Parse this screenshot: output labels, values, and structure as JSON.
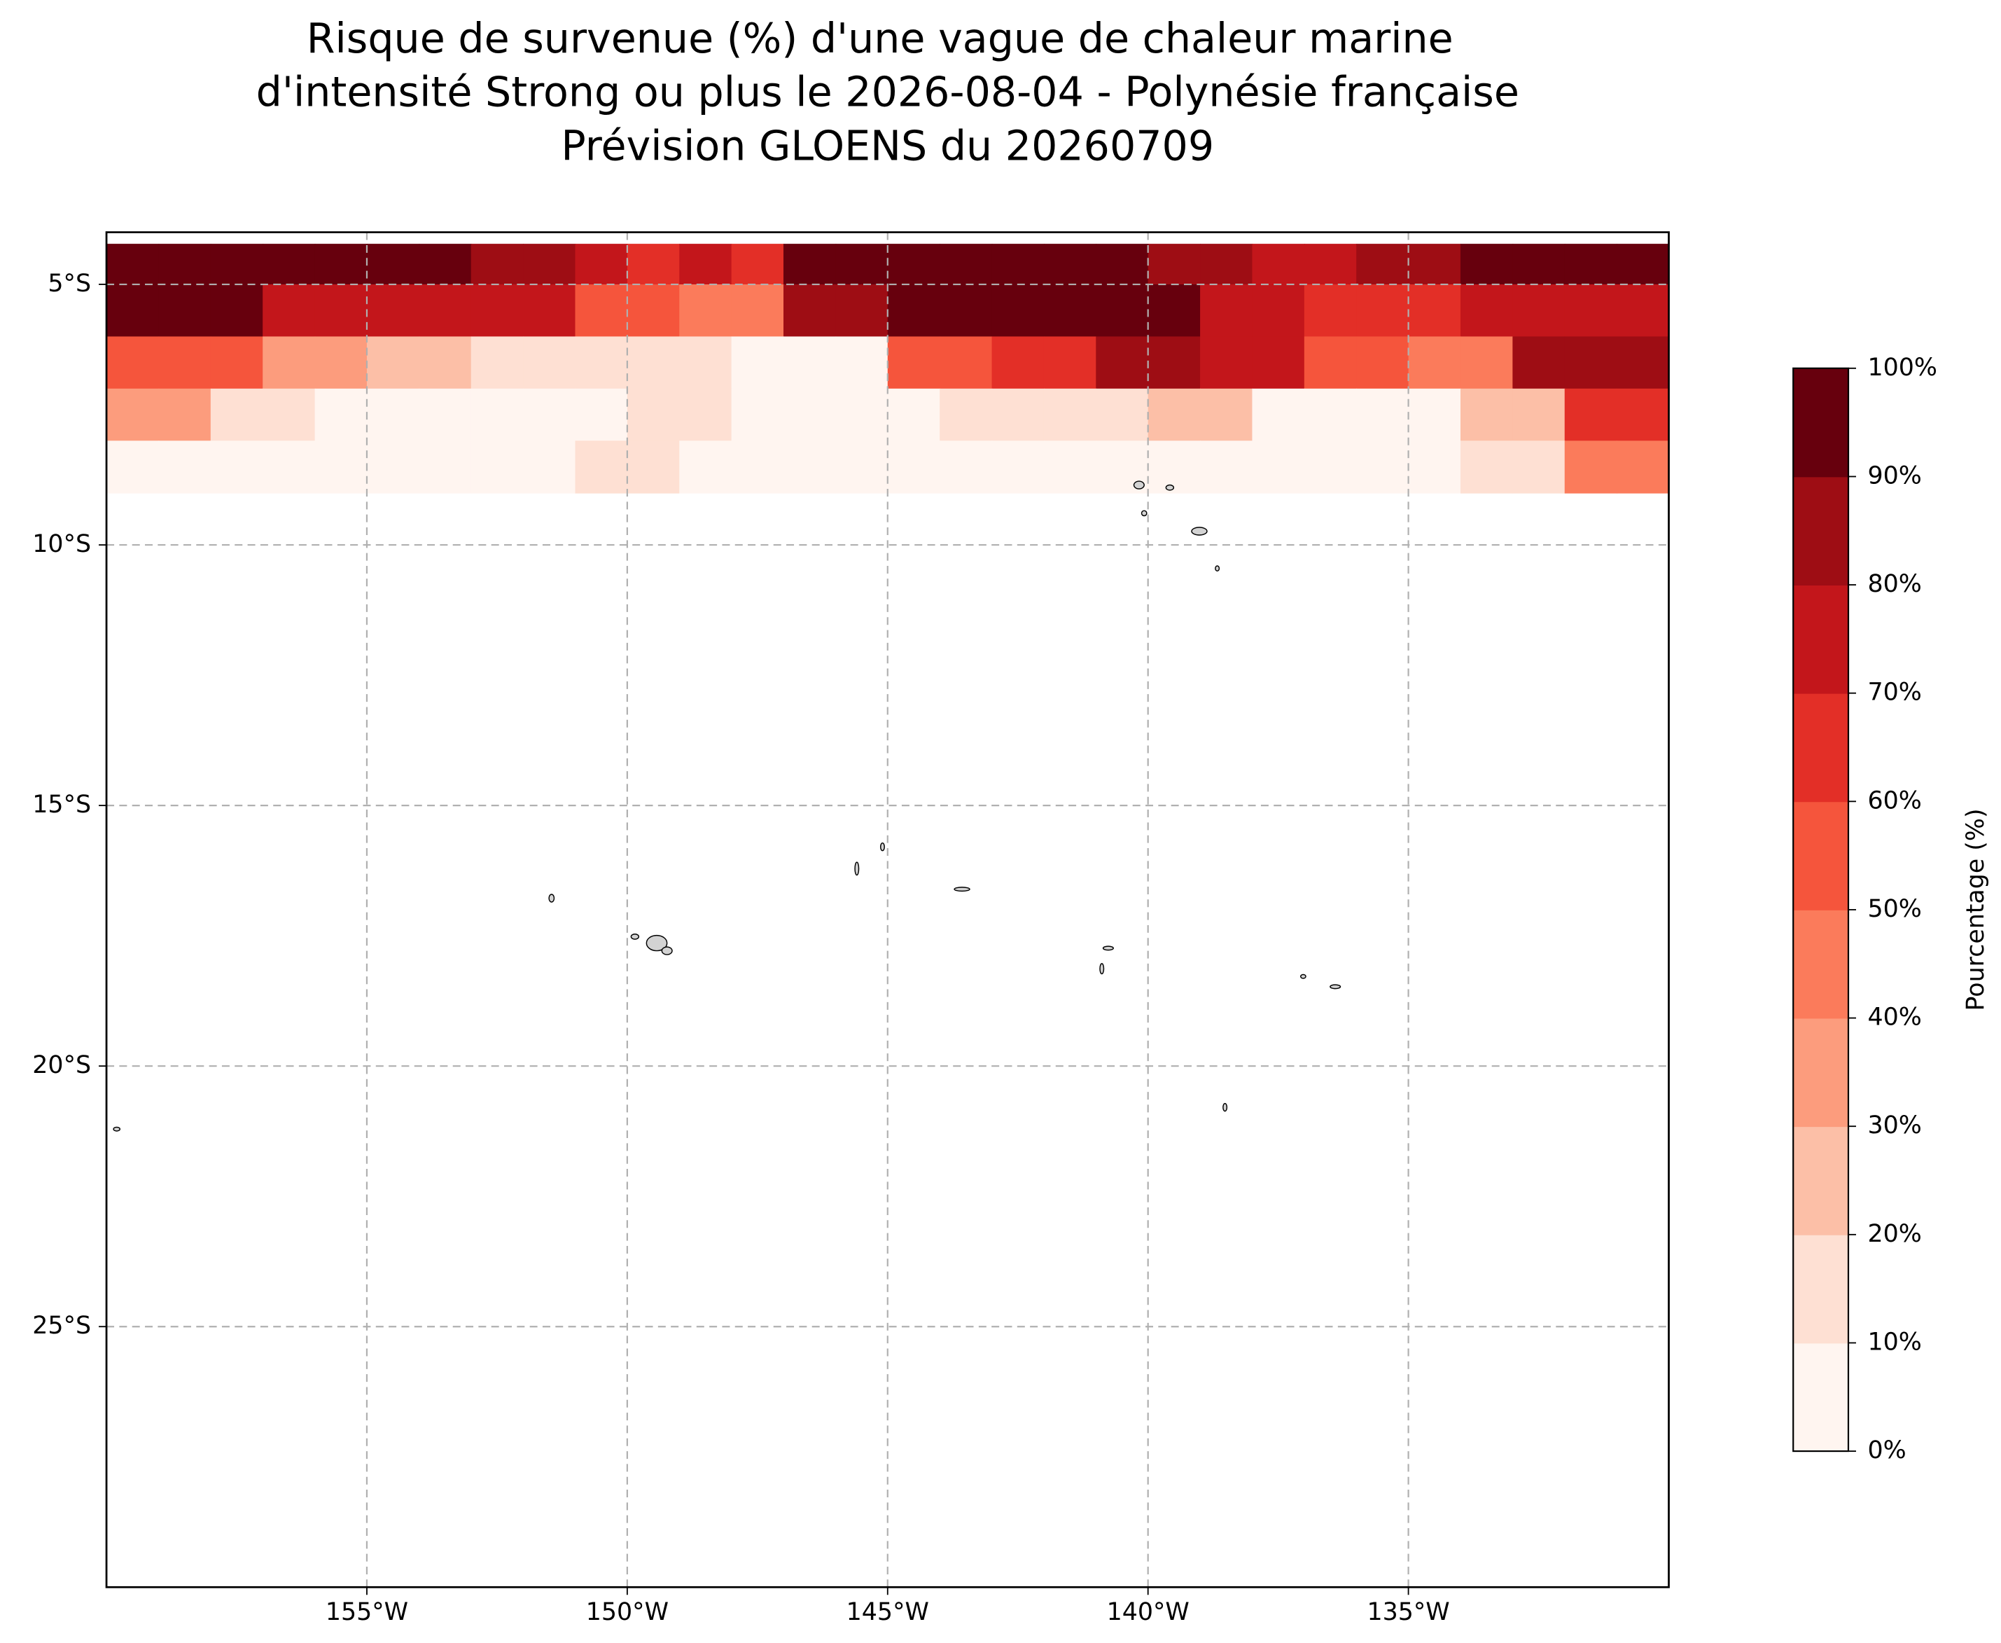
{
  "chart_data": {
    "type": "filled-contour-map",
    "title": [
      "Risque de survenue (%) d'une vague de chaleur marine",
      "d'intensité Strong ou plus le 2026-08-04 - Polynésie française",
      "Prévision GLOENS du 20260709"
    ],
    "xlim": [
      -160,
      -130
    ],
    "ylim": [
      -30,
      -4
    ],
    "xticks": [
      {
        "value": -155,
        "label": "155°W"
      },
      {
        "value": -150,
        "label": "150°W"
      },
      {
        "value": -145,
        "label": "145°W"
      },
      {
        "value": -140,
        "label": "140°W"
      },
      {
        "value": -135,
        "label": "135°W"
      }
    ],
    "yticks": [
      {
        "value": -5,
        "label": "5°S"
      },
      {
        "value": -10,
        "label": "10°S"
      },
      {
        "value": -15,
        "label": "15°S"
      },
      {
        "value": -20,
        "label": "20°S"
      },
      {
        "value": -25,
        "label": "25°S"
      }
    ],
    "grid": true,
    "lons": [
      -159.5,
      -158.5,
      -157.5,
      -156.5,
      -155.5,
      -154.5,
      -153.5,
      -152.5,
      -151.5,
      -150.5,
      -149.5,
      -148.5,
      -147.5,
      -146.5,
      -145.5,
      -144.5,
      -143.5,
      -142.5,
      -141.5,
      -140.5,
      -139.5,
      -138.5,
      -137.5,
      -136.5,
      -135.5,
      -134.5,
      -133.5,
      -132.5,
      -131.5,
      -130.5
    ],
    "lats": [
      -4.5,
      -5.5,
      -6.5,
      -7.5,
      -8.5
    ],
    "values": [
      [
        95,
        95,
        95,
        95,
        95,
        90,
        90,
        85,
        85,
        70,
        65,
        70,
        60,
        95,
        95,
        95,
        95,
        95,
        95,
        95,
        85,
        85,
        70,
        70,
        80,
        80,
        90,
        90,
        90,
        90
      ],
      [
        90,
        90,
        90,
        70,
        70,
        75,
        75,
        70,
        70,
        55,
        55,
        45,
        45,
        85,
        85,
        95,
        95,
        95,
        95,
        95,
        95,
        70,
        70,
        65,
        65,
        65,
        75,
        75,
        70,
        70
      ],
      [
        50,
        50,
        50,
        30,
        30,
        20,
        20,
        15,
        15,
        15,
        10,
        10,
        5,
        5,
        5,
        50,
        50,
        65,
        65,
        85,
        85,
        70,
        70,
        50,
        50,
        40,
        40,
        80,
        80,
        80
      ],
      [
        30,
        30,
        10,
        10,
        5,
        5,
        5,
        5,
        5,
        5,
        10,
        10,
        0,
        0,
        0,
        0,
        10,
        10,
        10,
        10,
        20,
        20,
        5,
        5,
        5,
        5,
        25,
        25,
        65,
        65
      ],
      [
        0,
        0,
        0,
        0,
        0,
        0,
        0,
        0,
        0,
        10,
        10,
        0,
        0,
        0,
        0,
        0,
        0,
        0,
        0,
        0,
        0,
        0,
        0,
        0,
        0,
        0,
        10,
        10,
        45,
        45
      ]
    ],
    "levels": [
      {
        "value": 0,
        "label": "0%"
      },
      {
        "value": 10,
        "label": "10%"
      },
      {
        "value": 20,
        "label": "20%"
      },
      {
        "value": 30,
        "label": "30%"
      },
      {
        "value": 40,
        "label": "40%"
      },
      {
        "value": 50,
        "label": "50%"
      },
      {
        "value": 60,
        "label": "60%"
      },
      {
        "value": 70,
        "label": "70%"
      },
      {
        "value": 80,
        "label": "80%"
      },
      {
        "value": 90,
        "label": "90%"
      },
      {
        "value": 100,
        "label": "100%"
      }
    ],
    "colors": [
      "#fff5f0",
      "#fee0d3",
      "#fcbfa7",
      "#fc9c7d",
      "#fb7b5b",
      "#f5553c",
      "#e32f27",
      "#c3161b",
      "#9e0d14",
      "#67000d"
    ],
    "colorbar_label": "Pourcentage (%)"
  }
}
